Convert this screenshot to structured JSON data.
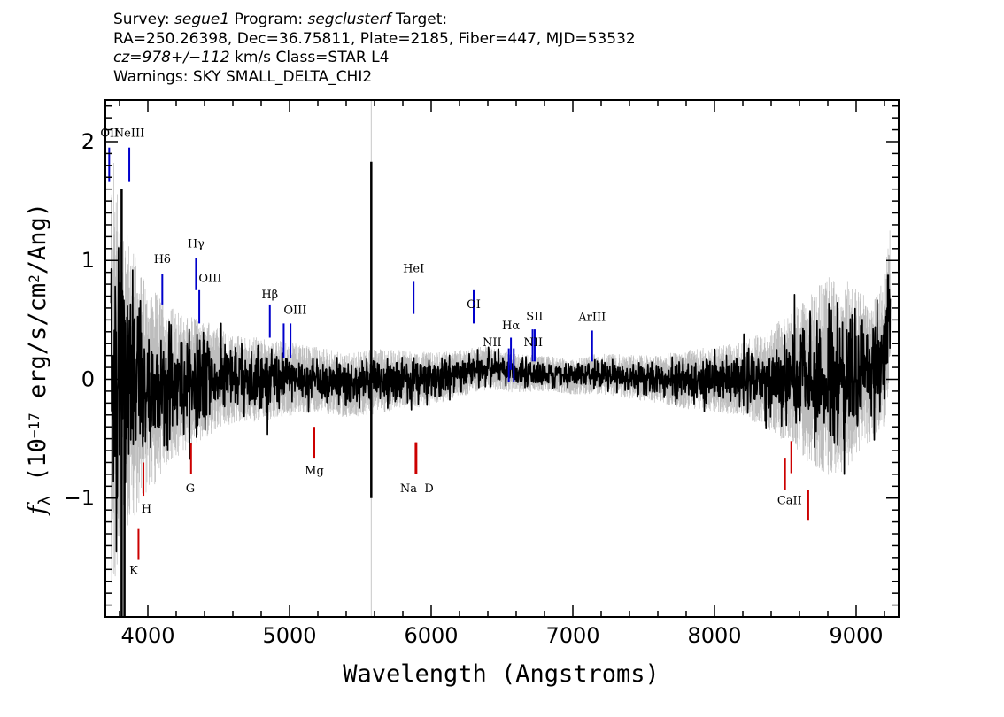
{
  "header": {
    "survey_label": "Survey:",
    "survey": "segue1",
    "program_label": "Program:",
    "program": "segclusterf",
    "target_label": "Target:",
    "line2": "RA=250.26398, Dec=36.75811, Plate=2185, Fiber=447, MJD=53532",
    "cz": "cz=978+/−112",
    "cz_unit": "km/s",
    "class_text": "Class=STAR L4",
    "warnings": "Warnings: SKY SMALL_DELTA_CHI2"
  },
  "chart_data": {
    "type": "line",
    "xlabel": "Wavelength (Angstroms)",
    "ylabel": "f_λ (10^-17 erg/s/cm^2/Ang)",
    "xlim": [
      3700,
      9300
    ],
    "ylim": [
      -2.0,
      2.35
    ],
    "xticks": [
      4000,
      5000,
      6000,
      7000,
      8000,
      9000
    ],
    "yticks": [
      -1,
      0,
      1,
      2
    ],
    "series": [
      {
        "role": "error",
        "color": "#bdbdbd"
      },
      {
        "role": "flux",
        "color": "#000000"
      }
    ],
    "profile": {
      "x": [
        3740,
        3800,
        3850,
        3900,
        4000,
        4100,
        4200,
        4400,
        4600,
        4800,
        5000,
        5200,
        5400,
        5600,
        5800,
        6000,
        6200,
        6400,
        6600,
        6800,
        7000,
        7200,
        7400,
        7600,
        7800,
        8000,
        8200,
        8400,
        8600,
        8800,
        9000,
        9100,
        9200,
        9240
      ],
      "flux": [
        0.0,
        0.05,
        0.0,
        -0.05,
        -0.1,
        -0.05,
        -0.05,
        0.0,
        0.0,
        0.0,
        0.0,
        0.0,
        -0.05,
        -0.02,
        0.0,
        0.0,
        0.05,
        0.1,
        0.05,
        0.05,
        0.02,
        0.05,
        0.02,
        0.0,
        0.0,
        0.0,
        0.0,
        0.0,
        0.0,
        0.0,
        0.05,
        0.1,
        0.2,
        0.7
      ],
      "error": [
        1.6,
        1.2,
        1.0,
        0.9,
        0.7,
        0.6,
        0.5,
        0.4,
        0.3,
        0.28,
        0.25,
        0.22,
        0.22,
        0.22,
        0.2,
        0.18,
        0.16,
        0.15,
        0.13,
        0.12,
        0.12,
        0.14,
        0.15,
        0.16,
        0.2,
        0.22,
        0.25,
        0.35,
        0.5,
        0.7,
        0.6,
        0.5,
        0.5,
        0.5
      ]
    },
    "spikes": [
      {
        "x": 3815,
        "y0": -2.0,
        "y1": 1.6
      },
      {
        "x": 3835,
        "y0": -2.0,
        "y1": 0.5
      },
      {
        "x": 5577,
        "y0": -1.0,
        "y1": 1.83
      },
      {
        "x": 9225,
        "y0": 0.6,
        "y1": 0.88
      }
    ],
    "sky_line": {
      "x": 5577
    },
    "emission_lines": [
      {
        "label": "OII",
        "x": 3727,
        "y0": 1.66,
        "y1": 1.95,
        "ly": 2.04,
        "lx": 3730
      },
      {
        "label": "NeIII",
        "x": 3869,
        "y0": 1.66,
        "y1": 1.95,
        "ly": 2.04,
        "lx": 3869
      },
      {
        "label": "Hδ",
        "x": 4102,
        "y0": 0.63,
        "y1": 0.89,
        "ly": 0.98,
        "lx": 4102
      },
      {
        "label": "Hγ",
        "x": 4340,
        "y0": 0.75,
        "y1": 1.02,
        "ly": 1.11,
        "lx": 4340
      },
      {
        "label": "OIII",
        "x": 4363,
        "y0": 0.47,
        "y1": 0.75,
        "ly": 0.82,
        "lx": 4440
      },
      {
        "label": "Hβ",
        "x": 4861,
        "y0": 0.35,
        "y1": 0.63,
        "ly": 0.68,
        "lx": 4861
      },
      {
        "label": "OIII",
        "x": 4959,
        "y0": 0.18,
        "y1": 0.47,
        "ly": 0.55,
        "lx": 5040
      },
      {
        "label": "OIII",
        "x": 5007,
        "y0": 0.18,
        "y1": 0.47,
        "ly": -99,
        "lx": 5007
      },
      {
        "label": "HeI",
        "x": 5876,
        "y0": 0.55,
        "y1": 0.82,
        "ly": 0.9,
        "lx": 5876
      },
      {
        "label": "OI",
        "x": 6300,
        "y0": 0.47,
        "y1": 0.75,
        "ly": 0.6,
        "lx": 6300
      },
      {
        "label": "NII",
        "x": 6548,
        "y0": -0.02,
        "y1": 0.26,
        "ly": 0.28,
        "lx": 6430
      },
      {
        "label": "Hα",
        "x": 6563,
        "y0": 0.08,
        "y1": 0.35,
        "ly": 0.42,
        "lx": 6563
      },
      {
        "label": "NII",
        "x": 6583,
        "y0": -0.02,
        "y1": 0.26,
        "ly": -99,
        "lx": 6583
      },
      {
        "label": "SII",
        "x": 6716,
        "y0": 0.15,
        "y1": 0.42,
        "ly": 0.5,
        "lx": 6730
      },
      {
        "label": "NII",
        "x": 6731,
        "y0": 0.15,
        "y1": 0.42,
        "ly": 0.28,
        "lx": 6720
      },
      {
        "label": "ArIII",
        "x": 7136,
        "y0": 0.15,
        "y1": 0.41,
        "ly": 0.49,
        "lx": 7136
      }
    ],
    "absorption_lines": [
      {
        "label": "K",
        "x": 3934,
        "y0": -1.52,
        "y1": -1.26,
        "ly": -1.64,
        "lx": 3900
      },
      {
        "label": "H",
        "x": 3969,
        "y0": -0.98,
        "y1": -0.7,
        "ly": -1.12,
        "lx": 3990
      },
      {
        "label": "G",
        "x": 4305,
        "y0": -0.8,
        "y1": -0.54,
        "ly": -0.95,
        "lx": 4300
      },
      {
        "label": "Mg",
        "x": 5175,
        "y0": -0.66,
        "y1": -0.4,
        "ly": -0.8,
        "lx": 5175
      },
      {
        "label": "Na",
        "x": 5890,
        "y0": -0.8,
        "y1": -0.53,
        "ly": -0.95,
        "lx": 5840
      },
      {
        "label": "D",
        "x": 5896,
        "y0": -0.8,
        "y1": -0.53,
        "ly": -0.95,
        "lx": 5985
      },
      {
        "label": "CaII",
        "x": 8498,
        "y0": -0.93,
        "y1": -0.66,
        "ly": -1.05,
        "lx": 8530
      },
      {
        "label": "",
        "x": 8542,
        "y0": -0.79,
        "y1": -0.52,
        "ly": -99,
        "lx": 8542
      },
      {
        "label": "",
        "x": 8662,
        "y0": -1.19,
        "y1": -0.93,
        "ly": -99,
        "lx": 8662
      }
    ],
    "emission_color": "#0000cc",
    "absorption_color": "#cc0000"
  }
}
